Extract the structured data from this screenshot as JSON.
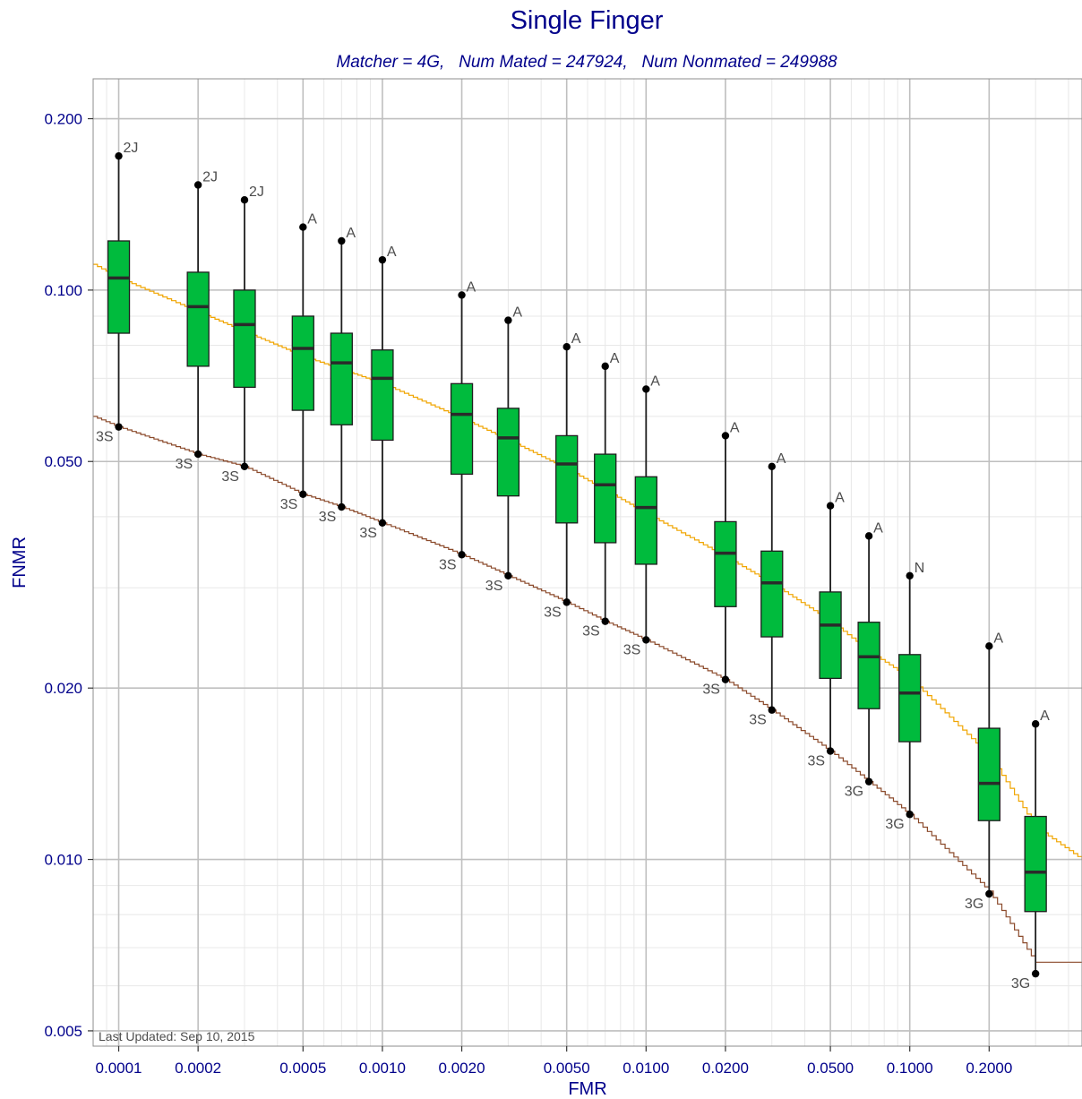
{
  "chart_data": {
    "type": "box",
    "title": "Single Finger",
    "subtitle": "Matcher = 4G,   Num Mated = 247924,   Num Nonmated = 249988",
    "xlabel": "FMR",
    "ylabel": "FNMR",
    "x_scale": "log",
    "y_scale": "log",
    "xlim": [
      8e-05,
      0.45
    ],
    "ylim": [
      0.0047,
      0.235
    ],
    "x_ticks": [
      "0.0001",
      "0.0002",
      "0.0005",
      "0.0010",
      "0.0020",
      "0.0050",
      "0.0100",
      "0.0200",
      "0.0500",
      "0.1000",
      "0.2000"
    ],
    "y_ticks": [
      "0.005",
      "0.010",
      "0.020",
      "0.050",
      "0.100",
      "0.200"
    ],
    "grid": true,
    "footnote": "Last Updated: Sep 10, 2015",
    "colors": {
      "box_fill": "#00bb3d",
      "box_stroke": "#1e1e1e",
      "orange_curve": "#f0a500",
      "brown_curve": "#8b4a2b",
      "title": "#00008b",
      "grid_major": "#bfbfbf",
      "grid_minor": "#e8e8e8"
    },
    "boxes": [
      {
        "fmr": 0.0001,
        "min": 0.0575,
        "q1": 0.084,
        "median": 0.105,
        "q3": 0.122,
        "max": 0.172,
        "max_label": "2J",
        "min_label": "3S"
      },
      {
        "fmr": 0.0002,
        "min": 0.0515,
        "q1": 0.0735,
        "median": 0.0935,
        "q3": 0.1075,
        "max": 0.153,
        "max_label": "2J",
        "min_label": "3S"
      },
      {
        "fmr": 0.0003,
        "min": 0.049,
        "q1": 0.0675,
        "median": 0.087,
        "q3": 0.1,
        "max": 0.144,
        "max_label": "2J",
        "min_label": "3S"
      },
      {
        "fmr": 0.0005,
        "min": 0.0438,
        "q1": 0.0615,
        "median": 0.079,
        "q3": 0.09,
        "max": 0.129,
        "max_label": "A",
        "min_label": "3S"
      },
      {
        "fmr": 0.0007,
        "min": 0.0416,
        "q1": 0.058,
        "median": 0.0745,
        "q3": 0.084,
        "max": 0.122,
        "max_label": "A",
        "min_label": "3S"
      },
      {
        "fmr": 0.001,
        "min": 0.039,
        "q1": 0.0545,
        "median": 0.07,
        "q3": 0.0785,
        "max": 0.113,
        "max_label": "A",
        "min_label": "3S"
      },
      {
        "fmr": 0.002,
        "min": 0.0343,
        "q1": 0.0475,
        "median": 0.0605,
        "q3": 0.0685,
        "max": 0.098,
        "max_label": "A",
        "min_label": "3S"
      },
      {
        "fmr": 0.003,
        "min": 0.0315,
        "q1": 0.0435,
        "median": 0.055,
        "q3": 0.062,
        "max": 0.0885,
        "max_label": "A",
        "min_label": "3S"
      },
      {
        "fmr": 0.005,
        "min": 0.0283,
        "q1": 0.039,
        "median": 0.0495,
        "q3": 0.0555,
        "max": 0.0795,
        "max_label": "A",
        "min_label": "3S"
      },
      {
        "fmr": 0.007,
        "min": 0.0262,
        "q1": 0.036,
        "median": 0.0455,
        "q3": 0.0515,
        "max": 0.0735,
        "max_label": "A",
        "min_label": "3S"
      },
      {
        "fmr": 0.01,
        "min": 0.0243,
        "q1": 0.033,
        "median": 0.0415,
        "q3": 0.047,
        "max": 0.067,
        "max_label": "A",
        "min_label": "3S"
      },
      {
        "fmr": 0.02,
        "min": 0.0207,
        "q1": 0.0278,
        "median": 0.0345,
        "q3": 0.0392,
        "max": 0.0555,
        "max_label": "A",
        "min_label": "3S"
      },
      {
        "fmr": 0.03,
        "min": 0.0183,
        "q1": 0.0246,
        "median": 0.0306,
        "q3": 0.0348,
        "max": 0.049,
        "max_label": "A",
        "min_label": "3S"
      },
      {
        "fmr": 0.05,
        "min": 0.0155,
        "q1": 0.0208,
        "median": 0.0258,
        "q3": 0.0295,
        "max": 0.0418,
        "max_label": "A",
        "min_label": "3S"
      },
      {
        "fmr": 0.07,
        "min": 0.0137,
        "q1": 0.0184,
        "median": 0.0227,
        "q3": 0.0261,
        "max": 0.037,
        "max_label": "A",
        "min_label": "3G"
      },
      {
        "fmr": 0.1,
        "min": 0.012,
        "q1": 0.0161,
        "median": 0.0196,
        "q3": 0.0229,
        "max": 0.0315,
        "max_label": "N",
        "min_label": "3G"
      },
      {
        "fmr": 0.2,
        "min": 0.0087,
        "q1": 0.0117,
        "median": 0.0136,
        "q3": 0.017,
        "max": 0.0237,
        "max_label": "A",
        "min_label": "3G"
      },
      {
        "fmr": 0.3,
        "min": 0.0063,
        "q1": 0.0081,
        "median": 0.0095,
        "q3": 0.0119,
        "max": 0.0173,
        "max_label": "A",
        "min_label": "3G"
      }
    ],
    "series": [
      {
        "x": [
          8e-05,
          0.0001,
          0.0002,
          0.0003,
          0.0005,
          0.0007,
          0.001,
          0.002,
          0.003,
          0.005,
          0.007,
          0.01,
          0.02,
          0.03,
          0.05,
          0.07,
          0.1,
          0.2,
          0.3,
          0.45
        ],
        "y": [
          0.111,
          0.105,
          0.0915,
          0.0845,
          0.0765,
          0.0725,
          0.0685,
          0.0595,
          0.0545,
          0.0485,
          0.0445,
          0.0405,
          0.034,
          0.0305,
          0.0262,
          0.0232,
          0.0208,
          0.0152,
          0.0114,
          0.01
        ]
      },
      {
        "x": [
          8e-05,
          0.0001,
          0.0002,
          0.0003,
          0.0005,
          0.0007,
          0.001,
          0.002,
          0.003,
          0.005,
          0.007,
          0.01,
          0.02,
          0.03,
          0.05,
          0.07,
          0.1,
          0.2,
          0.3,
          0.45
        ],
        "y": [
          0.06,
          0.0575,
          0.0515,
          0.049,
          0.0438,
          0.0416,
          0.039,
          0.0343,
          0.0315,
          0.0283,
          0.0262,
          0.0243,
          0.0207,
          0.0183,
          0.0155,
          0.0137,
          0.012,
          0.0088,
          0.0066,
          0.0066
        ]
      }
    ]
  }
}
